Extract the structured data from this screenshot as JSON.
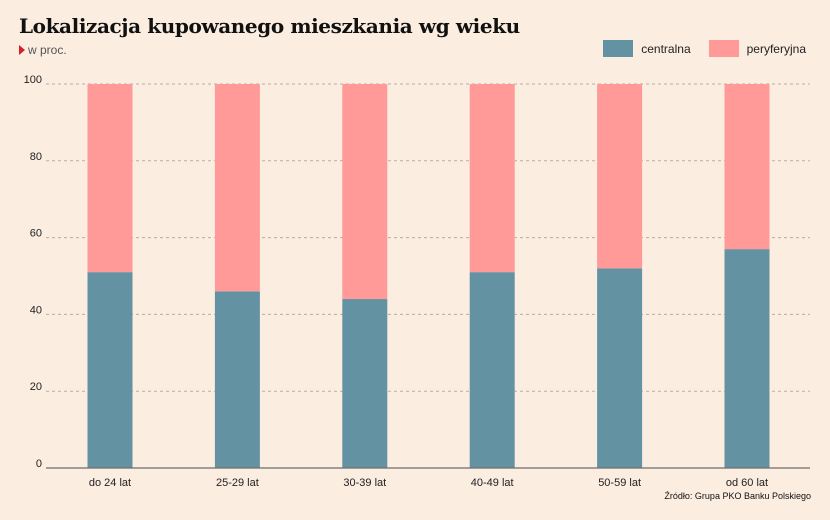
{
  "title": "Lokalizacja kupowanego mieszkania wg wieku",
  "subtitle": "w proc.",
  "source": "Źródło: Grupa PKO Banku Polskiego",
  "colors": {
    "centralna": "#6393a2",
    "peryferyjna": "#ff9a99",
    "background": "#fbede0",
    "grid": "#b9ada3",
    "axis": "#6e6e6e"
  },
  "chart_data": {
    "type": "bar",
    "stacked": true,
    "categories": [
      "do 24 lat",
      "25-29 lat",
      "30-39 lat",
      "40-49 lat",
      "50-59 lat",
      "od 60 lat"
    ],
    "series": [
      {
        "name": "centralna",
        "values": [
          51,
          46,
          44,
          51,
          52,
          57
        ]
      },
      {
        "name": "peryferyjna",
        "values": [
          49,
          54,
          56,
          49,
          48,
          43
        ]
      }
    ],
    "ylim": [
      0,
      100
    ],
    "yticks": [
      0,
      20,
      40,
      60,
      80,
      100
    ],
    "grid": true,
    "legend": "top-right"
  }
}
